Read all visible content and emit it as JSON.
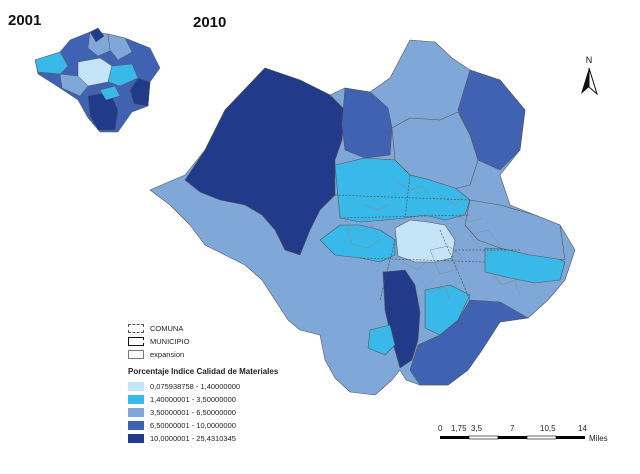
{
  "titles": {
    "year_2001": "2001",
    "year_2010": "2010"
  },
  "north_label": "N",
  "legend": {
    "boundary_items": [
      {
        "label": "COMUNA",
        "style": "comuna"
      },
      {
        "label": "MUNICIPIO",
        "style": "municipio"
      },
      {
        "label": "expansion",
        "style": "expansion"
      }
    ],
    "title": "Porcentaje Indice Calidad de Materiales",
    "classes": [
      {
        "label": "0,075938758 - 1,40000000",
        "color": "#c4e4f7"
      },
      {
        "label": "1,40000001 - 3,50000000",
        "color": "#39b8ea"
      },
      {
        "label": "3,50000001 - 6,50000000",
        "color": "#7fa8d9"
      },
      {
        "label": "6,50000001 - 10,0000000",
        "color": "#3f63b2"
      },
      {
        "label": "10,0000001 - 25,4310345",
        "color": "#223a8a"
      }
    ]
  },
  "scale": {
    "ticks": [
      "0",
      "1,75",
      "3,5",
      "7",
      "10,5",
      "14"
    ],
    "unit": "Miles"
  }
}
